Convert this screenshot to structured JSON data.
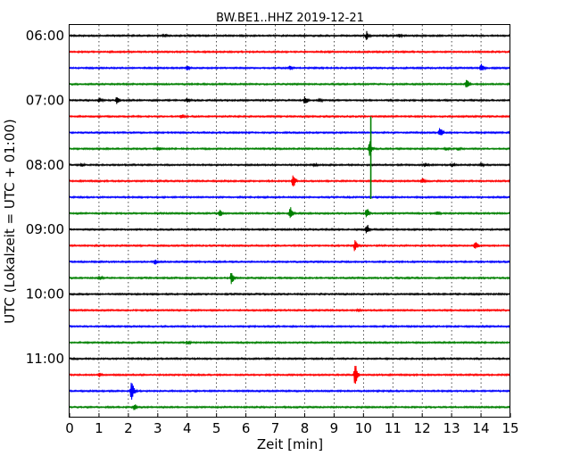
{
  "chart_data": {
    "type": "line",
    "title": "BW.BE1..HHZ 2019-12-21",
    "xlabel": "Zeit  [min]",
    "ylabel": "UTC (Lokalzeit = UTC + 01:00)",
    "xlim": [
      0,
      15
    ],
    "x_ticks": [
      "0",
      "1",
      "2",
      "3",
      "4",
      "5",
      "6",
      "7",
      "8",
      "9",
      "10",
      "11",
      "12",
      "13",
      "14",
      "15"
    ],
    "y_ticks": [
      "06:00",
      "07:00",
      "08:00",
      "09:00",
      "10:00",
      "11:00"
    ],
    "grid": true,
    "trace_colors": [
      "#000000",
      "#ff0000",
      "#0000ff",
      "#008000"
    ],
    "traces": [
      {
        "start": "06:00",
        "events": [
          [
            3.2,
            1.5
          ],
          [
            10.1,
            4.5
          ],
          [
            11.2,
            1.5
          ]
        ]
      },
      {
        "start": "06:15",
        "events": []
      },
      {
        "start": "06:30",
        "events": [
          [
            4.0,
            2.0
          ],
          [
            7.5,
            2.0
          ],
          [
            14.0,
            4.5
          ]
        ]
      },
      {
        "start": "06:45",
        "events": [
          [
            13.5,
            5.0
          ]
        ]
      },
      {
        "start": "07:00",
        "events": [
          [
            1.0,
            2.5
          ],
          [
            1.6,
            3.5
          ],
          [
            4.0,
            2.0
          ],
          [
            8.0,
            4.5
          ],
          [
            8.5,
            1.5
          ]
        ]
      },
      {
        "start": "07:15",
        "events": [
          [
            3.8,
            2.0
          ]
        ]
      },
      {
        "start": "07:30",
        "events": [
          [
            12.6,
            6.0
          ]
        ]
      },
      {
        "start": "07:45",
        "events": [
          [
            3.0,
            2.5
          ],
          [
            10.2,
            8.0
          ],
          [
            12.8,
            1.5
          ],
          [
            13.2,
            1.5
          ]
        ]
      },
      {
        "start": "08:00",
        "events": [
          [
            0.4,
            2.0
          ],
          [
            8.3,
            1.5
          ],
          [
            12.1,
            2.0
          ],
          [
            13.0,
            2.0
          ],
          [
            14.0,
            1.5
          ]
        ]
      },
      {
        "start": "08:15",
        "events": [
          [
            7.6,
            9.0
          ],
          [
            12.0,
            3.0
          ]
        ]
      },
      {
        "start": "08:30",
        "events": []
      },
      {
        "start": "08:45",
        "events": [
          [
            5.1,
            3.5
          ],
          [
            7.5,
            8.0
          ],
          [
            10.1,
            6.0
          ],
          [
            12.5,
            1.5
          ]
        ]
      },
      {
        "start": "09:00",
        "events": [
          [
            10.1,
            6.5
          ]
        ]
      },
      {
        "start": "09:15",
        "events": [
          [
            9.7,
            6.0
          ],
          [
            13.8,
            4.0
          ]
        ]
      },
      {
        "start": "09:30",
        "events": [
          [
            2.9,
            3.0
          ]
        ]
      },
      {
        "start": "09:45",
        "events": [
          [
            1.0,
            2.0
          ],
          [
            5.5,
            6.5
          ]
        ]
      },
      {
        "start": "10:00",
        "events": []
      },
      {
        "start": "10:15",
        "events": [
          [
            9.8,
            1.5
          ]
        ]
      },
      {
        "start": "10:30",
        "events": []
      },
      {
        "start": "10:45",
        "events": [
          [
            4.0,
            1.5
          ]
        ]
      },
      {
        "start": "11:00",
        "events": []
      },
      {
        "start": "11:15",
        "events": [
          [
            1.0,
            2.0
          ],
          [
            9.7,
            13.0
          ]
        ]
      },
      {
        "start": "11:30",
        "events": [
          [
            2.1,
            14.0
          ]
        ]
      },
      {
        "start": "11:45",
        "events": [
          [
            2.2,
            3.0
          ]
        ]
      }
    ],
    "spike": {
      "trace_start": "07:15",
      "trace_end": "08:30",
      "x": 10.25
    }
  }
}
